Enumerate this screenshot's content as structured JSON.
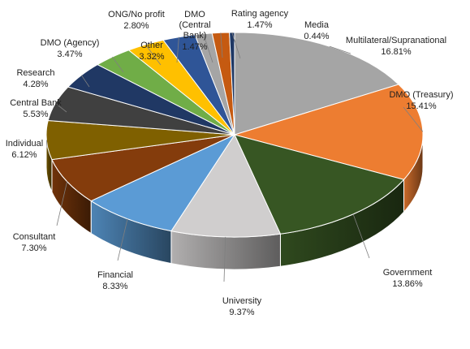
{
  "chart_data": {
    "type": "pie",
    "style": "3d-exploded-none",
    "title": "",
    "slices": [
      {
        "label": "Multilateral/Supranational",
        "value": 16.81,
        "display": "16.81%",
        "color": "#A5A5A5"
      },
      {
        "label": "DMO (Treasury)",
        "value": 15.41,
        "display": "15.41%",
        "color": "#ED7D31"
      },
      {
        "label": "Government",
        "value": 13.86,
        "display": "13.86%",
        "color": "#375623"
      },
      {
        "label": "University",
        "value": 9.37,
        "display": "9.37%",
        "color": "#D0CECE"
      },
      {
        "label": "Financial",
        "value": 8.33,
        "display": "8.33%",
        "color": "#5B9BD5"
      },
      {
        "label": "Consultant",
        "value": 7.3,
        "display": "7.30%",
        "color": "#843C0C"
      },
      {
        "label": "Individual",
        "value": 6.12,
        "display": "6.12%",
        "color": "#7F6000"
      },
      {
        "label": "Central Bank",
        "value": 5.53,
        "display": "5.53%",
        "color": "#404040"
      },
      {
        "label": "Research",
        "value": 4.28,
        "display": "4.28%",
        "color": "#203864"
      },
      {
        "label": "DMO (Agency)",
        "value": 3.47,
        "display": "3.47%",
        "color": "#70AD47"
      },
      {
        "label": "Other",
        "value": 3.32,
        "display": "3.32%",
        "color": "#FFC000"
      },
      {
        "label": "ONG/No profit",
        "value": 2.8,
        "display": "2.80%",
        "color": "#2F5597"
      },
      {
        "label": "DMO\n(Central\nBank)",
        "value": 1.47,
        "display": "1.47%",
        "color": "#A5A5A5"
      },
      {
        "label": "Rating agency",
        "value": 1.47,
        "display": "1.47%",
        "color": "#C55A11"
      },
      {
        "label": "Media",
        "value": 0.44,
        "display": "0.44%",
        "color": "#1F3864"
      }
    ]
  }
}
